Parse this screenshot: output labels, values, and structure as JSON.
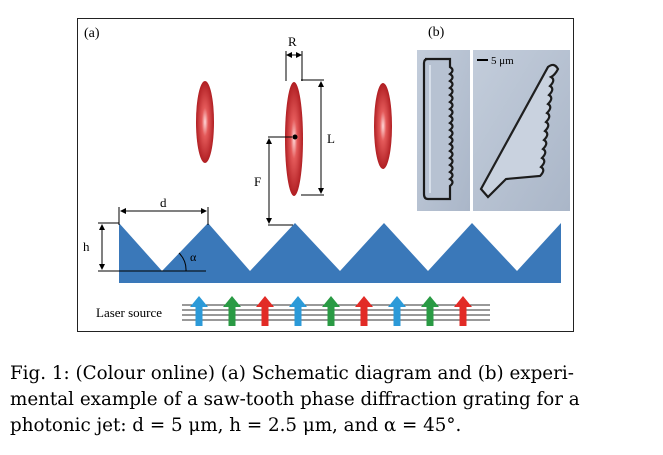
{
  "figure": {
    "panel_a_label": "(a)",
    "panel_b_label": "(b)",
    "label_R": "R",
    "label_L": "L",
    "label_F": "F",
    "label_d": "d",
    "label_h": "h",
    "label_alpha": "α",
    "laser_label": "Laser source",
    "scale_bar_label": "5 μm",
    "colors": {
      "grating": "#3a78b9",
      "ellipse": "#c8282b",
      "arrow_blue": "#2c9ad8",
      "arrow_green": "#2a9a44",
      "arrow_red": "#e22b26",
      "micrograph_bg": "#b9c4d4"
    },
    "arrow_sequence": [
      "blue",
      "green",
      "red",
      "blue",
      "green",
      "red",
      "blue",
      "green",
      "red"
    ]
  },
  "caption": {
    "line1": "Fig. 1: (Colour online) (a) Schematic diagram and (b) experi-",
    "line2": "mental example of a saw-tooth phase diffraction grating for a",
    "line3": "photonic jet: d = 5 μm, h = 2.5 μm, and α = 45°."
  }
}
